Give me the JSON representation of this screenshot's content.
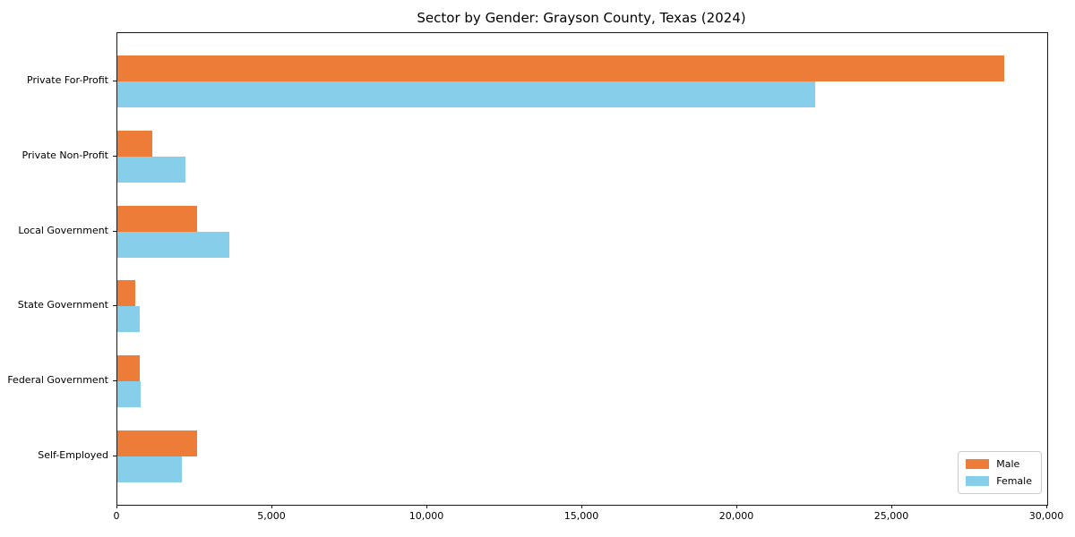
{
  "chart_data": {
    "type": "bar",
    "orientation": "horizontal",
    "title": "Sector by Gender: Grayson County, Texas (2024)",
    "categories": [
      "Private For-Profit",
      "Private Non-Profit",
      "Local Government",
      "State Government",
      "Federal Government",
      "Self-Employed"
    ],
    "series": [
      {
        "name": "Male",
        "color": "#ED7C39",
        "values": [
          28600,
          1130,
          2570,
          580,
          720,
          2570
        ]
      },
      {
        "name": "Female",
        "color": "#87CEEB",
        "values": [
          22500,
          2200,
          3610,
          720,
          750,
          2080
        ]
      }
    ],
    "xlim": [
      0,
      30000
    ],
    "xticks": [
      0,
      5000,
      10000,
      15000,
      20000,
      25000,
      30000
    ],
    "xtick_labels": [
      "0",
      "5,000",
      "10,000",
      "15,000",
      "20,000",
      "25,000",
      "30,000"
    ],
    "grid": false,
    "legend_position": "lower right"
  }
}
